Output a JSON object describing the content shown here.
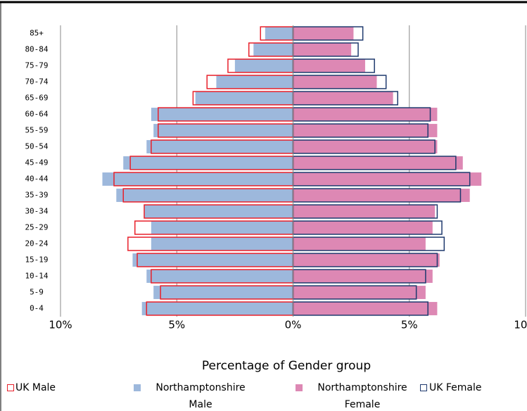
{
  "chart_data": {
    "type": "pyramid",
    "x_label": "Percentage of Gender group",
    "categories": [
      "85+",
      "80-84",
      "75-79",
      "70-74",
      "65-69",
      "60-64",
      "55-59",
      "50-54",
      "45-49",
      "40-44",
      "35-39",
      "30-34",
      "25-29",
      "20-24",
      "15-19",
      "10-14",
      "5-9",
      "0-4"
    ],
    "series": [
      {
        "name": "UK Male",
        "color": "#e8202a",
        "marker": "outline",
        "values": [
          -1.4,
          -1.9,
          -2.8,
          -3.7,
          -4.3,
          -5.8,
          -5.8,
          -6.1,
          -7.0,
          -7.7,
          -7.3,
          -6.4,
          -6.8,
          -7.1,
          -6.7,
          -6.1,
          -5.7,
          -6.3
        ]
      },
      {
        "name": "Northamptonshire Male",
        "color": "#9db8dc",
        "marker": "filled",
        "values": [
          -1.2,
          -1.7,
          -2.5,
          -3.3,
          -4.2,
          -6.1,
          -6.0,
          -6.3,
          -7.3,
          -8.2,
          -7.6,
          -6.4,
          -6.1,
          -6.1,
          -6.9,
          -6.3,
          -6.0,
          -6.5
        ]
      },
      {
        "name": "Northamptonshire Female",
        "color": "#dd88b4",
        "marker": "filled",
        "values": [
          2.6,
          2.5,
          3.1,
          3.6,
          4.3,
          6.2,
          6.2,
          6.2,
          7.3,
          8.1,
          7.6,
          6.1,
          6.0,
          5.7,
          6.3,
          6.0,
          5.7,
          6.2
        ]
      },
      {
        "name": "UK Female",
        "color": "#1f3a6e",
        "marker": "outline",
        "values": [
          3.0,
          2.8,
          3.5,
          4.0,
          4.5,
          5.9,
          5.8,
          6.1,
          7.0,
          7.6,
          7.2,
          6.2,
          6.4,
          6.5,
          6.2,
          5.7,
          5.3,
          5.8
        ]
      }
    ],
    "xlim": [
      -10,
      10
    ],
    "xticks": [
      {
        "value": -10,
        "label": "10%"
      },
      {
        "value": -5,
        "label": "5%"
      },
      {
        "value": 0,
        "label": "0%"
      },
      {
        "value": 5,
        "label": "5%"
      },
      {
        "value": 10,
        "label": "10%"
      }
    ],
    "grid": true
  }
}
